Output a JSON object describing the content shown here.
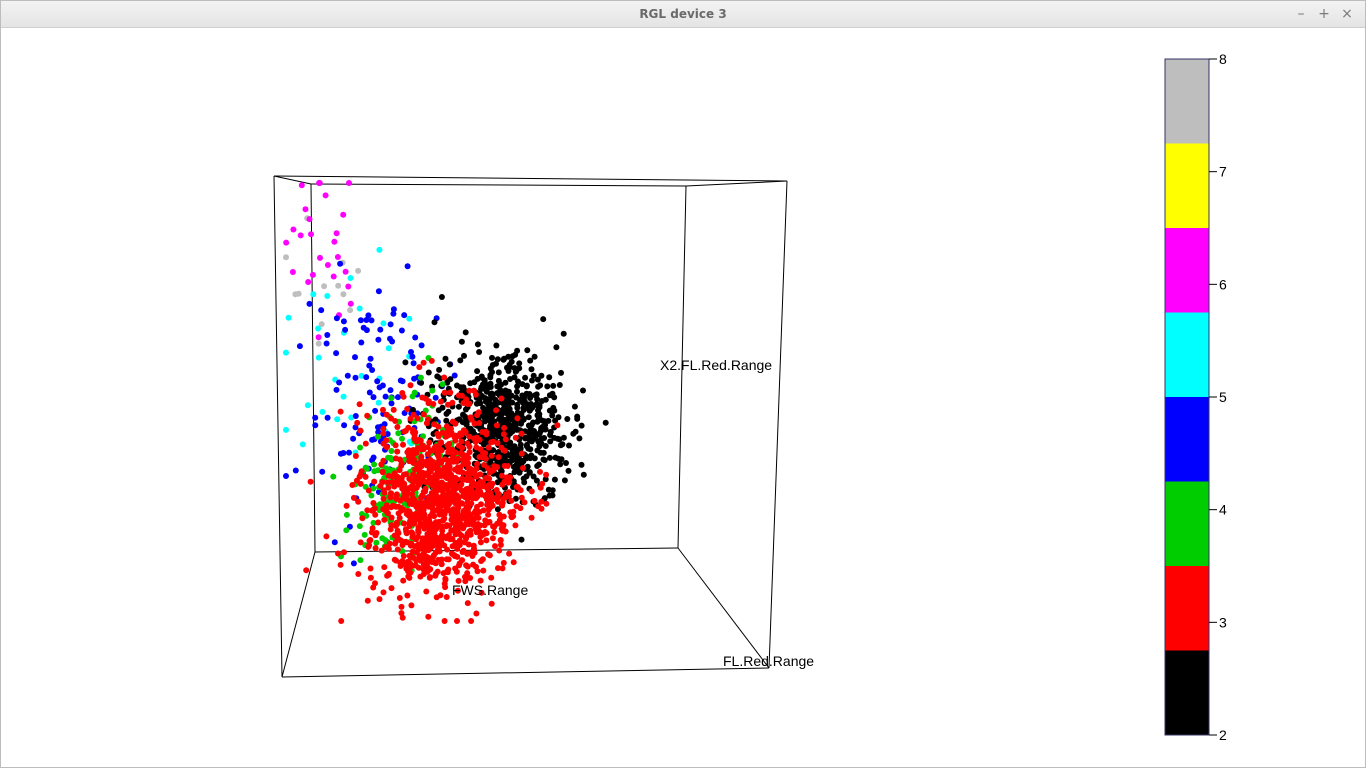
{
  "window": {
    "title": "RGL device 3",
    "controls": {
      "minimize": "–",
      "maximize": "+",
      "close": "×"
    }
  },
  "chart_data": {
    "type": "scatter",
    "projection": "3d",
    "axis_labels": {
      "x": "FL.Red.Range",
      "y": "FWS.Range",
      "z": "X2.FL.Red.Range"
    },
    "colorbar": {
      "ticks": [
        "2",
        "3",
        "4",
        "5",
        "6",
        "7",
        "8"
      ],
      "bins": [
        {
          "from": 2,
          "to": 2.75,
          "color": "#000000"
        },
        {
          "from": 2.75,
          "to": 3.5,
          "color": "#ff0000"
        },
        {
          "from": 3.5,
          "to": 4.25,
          "color": "#00cd00"
        },
        {
          "from": 4.25,
          "to": 5,
          "color": "#0000ff"
        },
        {
          "from": 5,
          "to": 5.75,
          "color": "#00ffff"
        },
        {
          "from": 5.75,
          "to": 6.5,
          "color": "#ff00ff"
        },
        {
          "from": 6.5,
          "to": 7.25,
          "color": "#ffff00"
        },
        {
          "from": 7.25,
          "to": 8,
          "color": "#bebebe"
        }
      ]
    },
    "point_groups": [
      {
        "value": 2,
        "color": "#000000",
        "count": 700
      },
      {
        "value": 3,
        "color": "#ff0000",
        "count": 1100
      },
      {
        "value": 4,
        "color": "#00cd00",
        "count": 160
      },
      {
        "value": 5,
        "color": "#0000ff",
        "count": 120
      },
      {
        "value": 5.5,
        "color": "#00ffff",
        "count": 30
      },
      {
        "value": 6,
        "color": "#ff00ff",
        "count": 26
      },
      {
        "value": 8,
        "color": "#bebebe",
        "count": 12
      }
    ]
  }
}
